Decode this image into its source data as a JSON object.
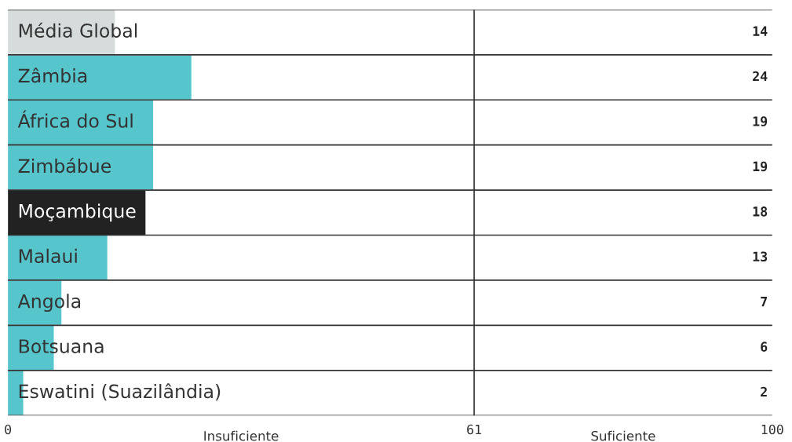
{
  "chart_data": {
    "type": "bar",
    "orientation": "horizontal",
    "categories": [
      "Média Global",
      "Zâmbia",
      "África do Sul",
      "Zimbábue",
      "Moçambique",
      "Malaui",
      "Angola",
      "Botsuana",
      "Eswatini (Suazilândia)"
    ],
    "values": [
      14,
      24,
      19,
      19,
      18,
      13,
      7,
      6,
      2
    ],
    "colors": [
      "#d5dcdb",
      "#56c5cc",
      "#56c5cc",
      "#56c5cc",
      "#222222",
      "#56c5cc",
      "#56c5cc",
      "#56c5cc",
      "#56c5cc"
    ],
    "xlim": [
      0,
      100
    ],
    "xticks": [
      0,
      61,
      100
    ],
    "ref_lines": [
      {
        "axis": "x",
        "value": 61,
        "label": null,
        "color": "#333333"
      }
    ],
    "annotations": [
      "Insuficiente",
      "Suficiente"
    ],
    "data_labels": true,
    "grid": "y",
    "legend": false
  }
}
